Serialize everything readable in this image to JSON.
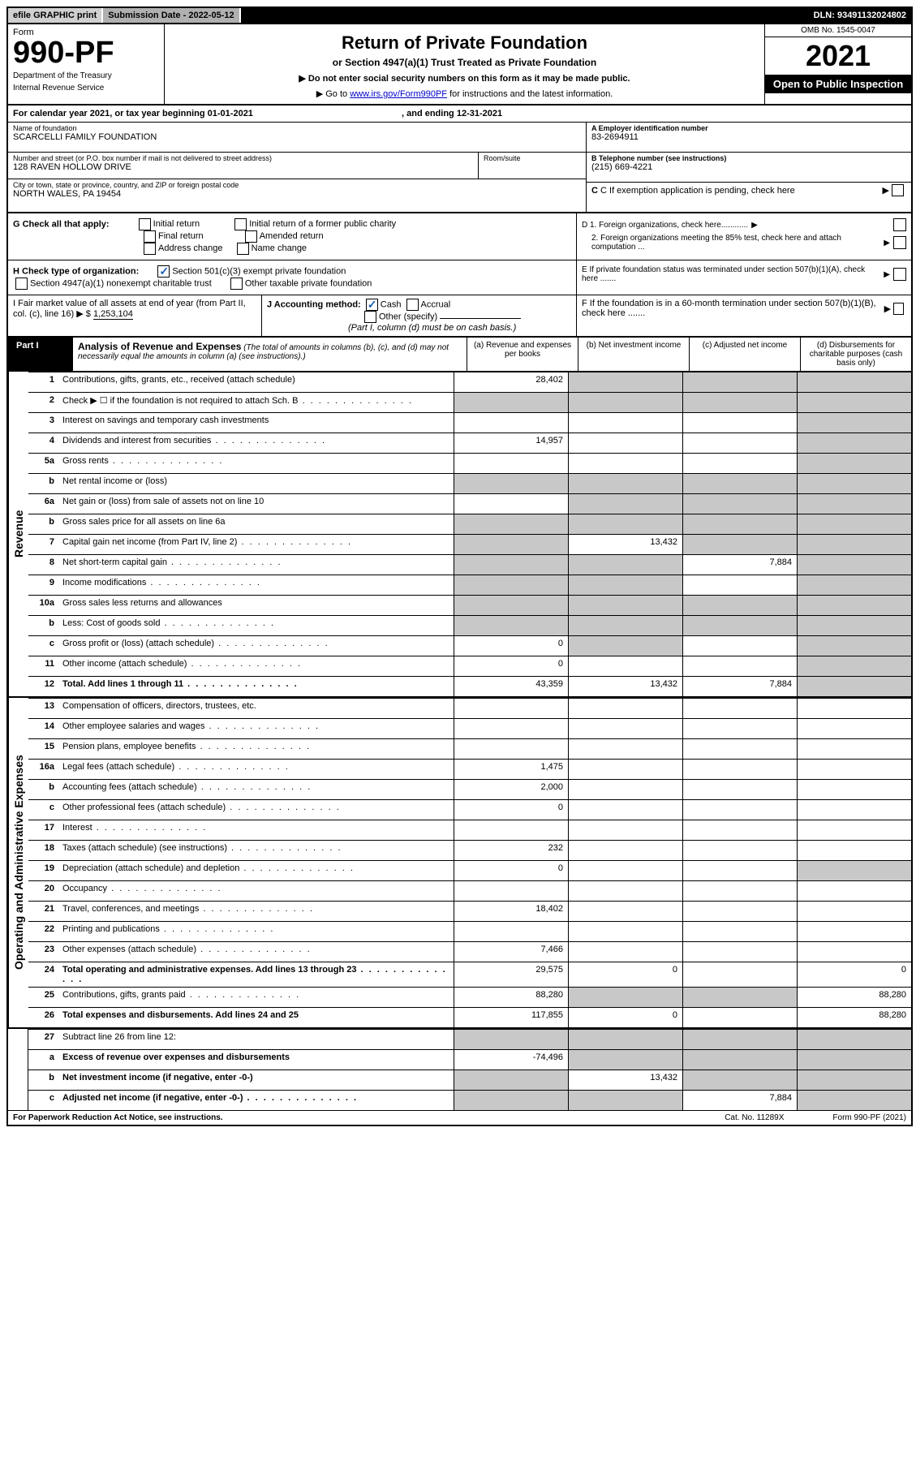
{
  "top": {
    "efile": "efile GRAPHIC print",
    "sub_label": "Submission Date - ",
    "sub_date": "2022-05-12",
    "dln_label": "DLN: ",
    "dln": "93491132024802"
  },
  "header": {
    "form_word": "Form",
    "form_no": "990-PF",
    "dept": "Department of the Treasury",
    "irs": "Internal Revenue Service",
    "title": "Return of Private Foundation",
    "subtitle": "or Section 4947(a)(1) Trust Treated as Private Foundation",
    "note1": "▶ Do not enter social security numbers on this form as it may be made public.",
    "note2_pre": "▶ Go to ",
    "note2_link": "www.irs.gov/Form990PF",
    "note2_post": " for instructions and the latest information.",
    "omb": "OMB No. 1545-0047",
    "year": "2021",
    "open": "Open to Public Inspection"
  },
  "cal": {
    "text_pre": "For calendar year 2021, or tax year beginning ",
    "begin": "01-01-2021",
    "text_mid": " , and ending ",
    "end": "12-31-2021"
  },
  "id": {
    "name_lbl": "Name of foundation",
    "name": "SCARCELLI FAMILY FOUNDATION",
    "addr_lbl": "Number and street (or P.O. box number if mail is not delivered to street address)",
    "addr": "128 RAVEN HOLLOW DRIVE",
    "room_lbl": "Room/suite",
    "city_lbl": "City or town, state or province, country, and ZIP or foreign postal code",
    "city": "NORTH WALES, PA  19454",
    "a_lbl": "A Employer identification number",
    "a": "83-2694911",
    "b_lbl": "B Telephone number (see instructions)",
    "b": "(215) 669-4221",
    "c_lbl": "C If exemption application is pending, check here"
  },
  "g": {
    "lbl": "G Check all that apply:",
    "opts": [
      "Initial return",
      "Final return",
      "Address change",
      "Initial return of a former public charity",
      "Amended return",
      "Name change"
    ]
  },
  "d": {
    "d1": "D 1. Foreign organizations, check here............",
    "d2": "2. Foreign organizations meeting the 85% test, check here and attach computation ...",
    "e": "E  If private foundation status was terminated under section 507(b)(1)(A), check here .......",
    "f": "F  If the foundation is in a 60-month termination under section 507(b)(1)(B), check here ......."
  },
  "h": {
    "lbl": "H Check type of organization:",
    "o1": "Section 501(c)(3) exempt private foundation",
    "o2": "Section 4947(a)(1) nonexempt charitable trust",
    "o3": "Other taxable private foundation"
  },
  "i": {
    "lbl": "I Fair market value of all assets at end of year (from Part II, col. (c), line 16) ▶ $",
    "val": "1,253,104"
  },
  "j": {
    "lbl": "J Accounting method:",
    "cash": "Cash",
    "accrual": "Accrual",
    "other": "Other (specify)",
    "note": "(Part I, column (d) must be on cash basis.)"
  },
  "part1": {
    "tag": "Part I",
    "title": "Analysis of Revenue and Expenses",
    "note": " (The total of amounts in columns (b), (c), and (d) may not necessarily equal the amounts in column (a) (see instructions).)",
    "col_a": "(a)  Revenue and expenses per books",
    "col_b": "(b)  Net investment income",
    "col_c": "(c)  Adjusted net income",
    "col_d": "(d)  Disbursements for charitable purposes (cash basis only)"
  },
  "side": {
    "rev": "Revenue",
    "exp": "Operating and Administrative Expenses"
  },
  "rows": [
    {
      "n": "1",
      "d": "Contributions, gifts, grants, etc., received (attach schedule)",
      "a": "28,402",
      "b": "g",
      "c": "g",
      "dd": "g"
    },
    {
      "n": "2",
      "d": "Check ▶ ☐ if the foundation is not required to attach Sch. B",
      "a": "g",
      "b": "g",
      "c": "g",
      "dd": "g",
      "dots": true
    },
    {
      "n": "3",
      "d": "Interest on savings and temporary cash investments",
      "a": "",
      "b": "",
      "c": "",
      "dd": "g"
    },
    {
      "n": "4",
      "d": "Dividends and interest from securities",
      "a": "14,957",
      "b": "",
      "c": "",
      "dd": "g",
      "dots": true
    },
    {
      "n": "5a",
      "d": "Gross rents",
      "a": "",
      "b": "",
      "c": "",
      "dd": "g",
      "dots": true
    },
    {
      "n": "b",
      "d": "Net rental income or (loss)",
      "a": "g",
      "b": "g",
      "c": "g",
      "dd": "g"
    },
    {
      "n": "6a",
      "d": "Net gain or (loss) from sale of assets not on line 10",
      "a": "",
      "b": "g",
      "c": "g",
      "dd": "g"
    },
    {
      "n": "b",
      "d": "Gross sales price for all assets on line 6a",
      "a": "g",
      "b": "g",
      "c": "g",
      "dd": "g"
    },
    {
      "n": "7",
      "d": "Capital gain net income (from Part IV, line 2)",
      "a": "g",
      "b": "13,432",
      "c": "g",
      "dd": "g",
      "dots": true
    },
    {
      "n": "8",
      "d": "Net short-term capital gain",
      "a": "g",
      "b": "g",
      "c": "7,884",
      "dd": "g",
      "dots": true
    },
    {
      "n": "9",
      "d": "Income modifications",
      "a": "g",
      "b": "g",
      "c": "",
      "dd": "g",
      "dots": true
    },
    {
      "n": "10a",
      "d": "Gross sales less returns and allowances",
      "a": "g",
      "b": "g",
      "c": "g",
      "dd": "g"
    },
    {
      "n": "b",
      "d": "Less: Cost of goods sold",
      "a": "g",
      "b": "g",
      "c": "g",
      "dd": "g",
      "dots": true
    },
    {
      "n": "c",
      "d": "Gross profit or (loss) (attach schedule)",
      "a": "0",
      "b": "g",
      "c": "",
      "dd": "g",
      "dots": true
    },
    {
      "n": "11",
      "d": "Other income (attach schedule)",
      "a": "0",
      "b": "",
      "c": "",
      "dd": "g",
      "dots": true
    },
    {
      "n": "12",
      "d": "Total. Add lines 1 through 11",
      "a": "43,359",
      "b": "13,432",
      "c": "7,884",
      "dd": "g",
      "bold": true,
      "dots": true
    }
  ],
  "exp_rows": [
    {
      "n": "13",
      "d": "Compensation of officers, directors, trustees, etc.",
      "a": "",
      "b": "",
      "c": "",
      "dd": ""
    },
    {
      "n": "14",
      "d": "Other employee salaries and wages",
      "a": "",
      "b": "",
      "c": "",
      "dd": "",
      "dots": true
    },
    {
      "n": "15",
      "d": "Pension plans, employee benefits",
      "a": "",
      "b": "",
      "c": "",
      "dd": "",
      "dots": true
    },
    {
      "n": "16a",
      "d": "Legal fees (attach schedule)",
      "a": "1,475",
      "b": "",
      "c": "",
      "dd": "",
      "dots": true
    },
    {
      "n": "b",
      "d": "Accounting fees (attach schedule)",
      "a": "2,000",
      "b": "",
      "c": "",
      "dd": "",
      "dots": true
    },
    {
      "n": "c",
      "d": "Other professional fees (attach schedule)",
      "a": "0",
      "b": "",
      "c": "",
      "dd": "",
      "dots": true
    },
    {
      "n": "17",
      "d": "Interest",
      "a": "",
      "b": "",
      "c": "",
      "dd": "",
      "dots": true
    },
    {
      "n": "18",
      "d": "Taxes (attach schedule) (see instructions)",
      "a": "232",
      "b": "",
      "c": "",
      "dd": "",
      "dots": true
    },
    {
      "n": "19",
      "d": "Depreciation (attach schedule) and depletion",
      "a": "0",
      "b": "",
      "c": "",
      "dd": "g",
      "dots": true
    },
    {
      "n": "20",
      "d": "Occupancy",
      "a": "",
      "b": "",
      "c": "",
      "dd": "",
      "dots": true
    },
    {
      "n": "21",
      "d": "Travel, conferences, and meetings",
      "a": "18,402",
      "b": "",
      "c": "",
      "dd": "",
      "dots": true
    },
    {
      "n": "22",
      "d": "Printing and publications",
      "a": "",
      "b": "",
      "c": "",
      "dd": "",
      "dots": true
    },
    {
      "n": "23",
      "d": "Other expenses (attach schedule)",
      "a": "7,466",
      "b": "",
      "c": "",
      "dd": "",
      "dots": true
    },
    {
      "n": "24",
      "d": "Total operating and administrative expenses. Add lines 13 through 23",
      "a": "29,575",
      "b": "0",
      "c": "",
      "dd": "0",
      "bold": true,
      "dots": true
    },
    {
      "n": "25",
      "d": "Contributions, gifts, grants paid",
      "a": "88,280",
      "b": "g",
      "c": "g",
      "dd": "88,280",
      "dots": true
    },
    {
      "n": "26",
      "d": "Total expenses and disbursements. Add lines 24 and 25",
      "a": "117,855",
      "b": "0",
      "c": "",
      "dd": "88,280",
      "bold": true
    }
  ],
  "sub_rows": [
    {
      "n": "27",
      "d": "Subtract line 26 from line 12:",
      "a": "g",
      "b": "g",
      "c": "g",
      "dd": "g"
    },
    {
      "n": "a",
      "d": "Excess of revenue over expenses and disbursements",
      "a": "-74,496",
      "b": "g",
      "c": "g",
      "dd": "g",
      "bold": true
    },
    {
      "n": "b",
      "d": "Net investment income (if negative, enter -0-)",
      "a": "g",
      "b": "13,432",
      "c": "g",
      "dd": "g",
      "bold": true
    },
    {
      "n": "c",
      "d": "Adjusted net income (if negative, enter -0-)",
      "a": "g",
      "b": "g",
      "c": "7,884",
      "dd": "g",
      "bold": true,
      "dots": true
    }
  ],
  "foot": {
    "left": "For Paperwork Reduction Act Notice, see instructions.",
    "mid": "Cat. No. 11289X",
    "right": "Form 990-PF (2021)"
  }
}
